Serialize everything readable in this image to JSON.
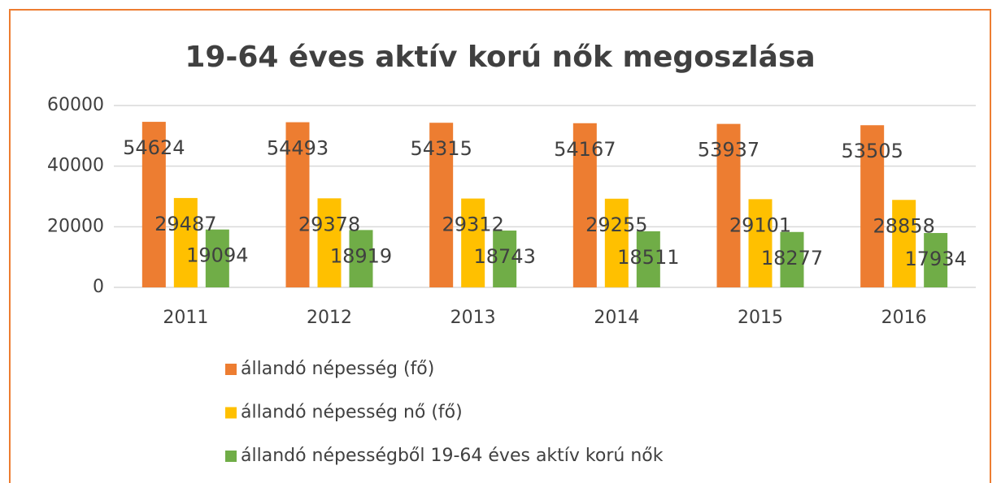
{
  "chart_data": {
    "type": "bar",
    "title": "19-64 éves aktív korú nők megoszlása",
    "categories": [
      "2011",
      "2012",
      "2013",
      "2014",
      "2015",
      "2016"
    ],
    "series": [
      {
        "name": "állandó népesség (fő)",
        "color": "#ED7D31",
        "values": [
          54624,
          54493,
          54315,
          54167,
          53937,
          53505
        ]
      },
      {
        "name": "állandó népesség nő (fő)",
        "color": "#FFC000",
        "values": [
          29487,
          29378,
          29312,
          29255,
          29101,
          28858
        ]
      },
      {
        "name": "állandó népességből 19-64 éves aktív korú nők",
        "color": "#70AD47",
        "values": [
          19094,
          18919,
          18743,
          18511,
          18277,
          17934
        ]
      }
    ],
    "ylim": [
      0,
      60000
    ],
    "yticks": [
      0,
      20000,
      40000,
      60000
    ],
    "grid": true,
    "legend": "bottom"
  }
}
